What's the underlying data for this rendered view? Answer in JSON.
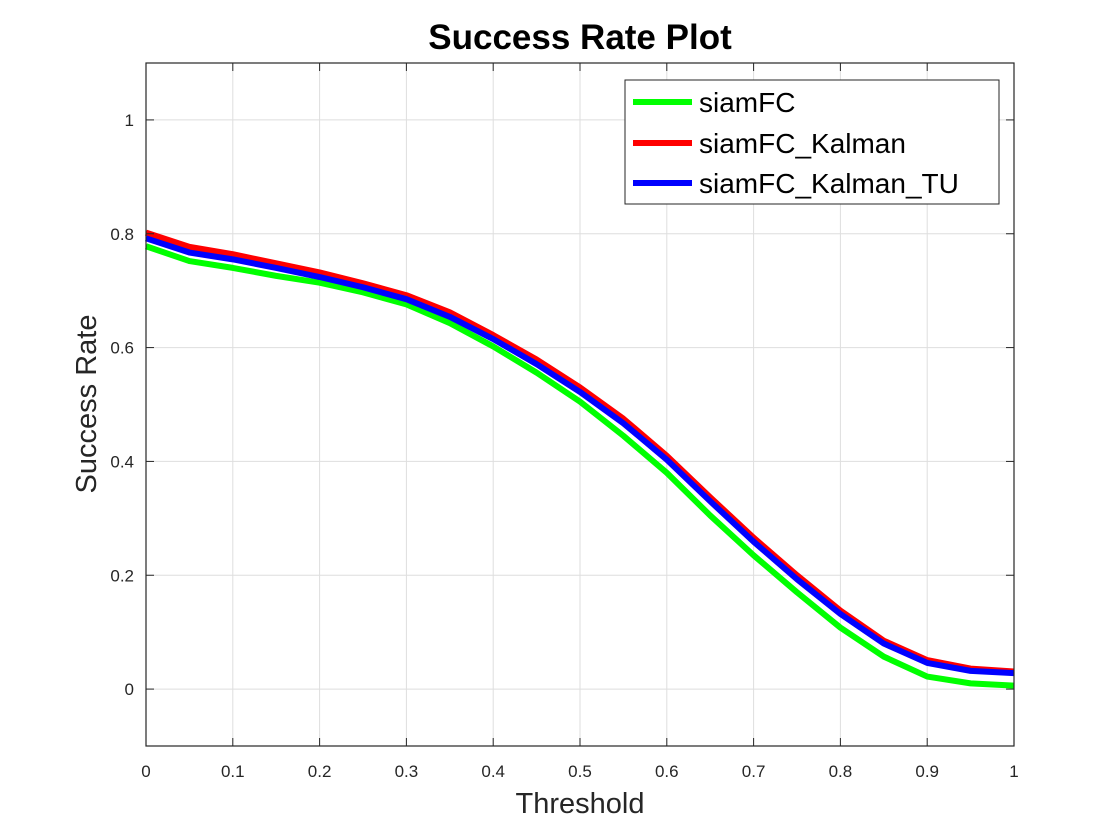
{
  "chart_data": {
    "type": "line",
    "title": "Success Rate Plot",
    "xlabel": "Threshold",
    "ylabel": "Success Rate",
    "xlim": [
      0,
      1
    ],
    "ylim": [
      -0.1,
      1.1
    ],
    "grid": true,
    "legend_position": "top-right",
    "xticks": [
      0,
      0.1,
      0.2,
      0.3,
      0.4,
      0.5,
      0.6,
      0.7,
      0.8,
      0.9,
      1
    ],
    "xtick_labels": [
      "0",
      "0.1",
      "0.2",
      "0.3",
      "0.4",
      "0.5",
      "0.6",
      "0.7",
      "0.8",
      "0.9",
      "1"
    ],
    "yticks": [
      0,
      0.2,
      0.4,
      0.6,
      0.8,
      1
    ],
    "ytick_labels": [
      "0",
      "0.2",
      "0.4",
      "0.6",
      "0.8",
      "1"
    ],
    "x": [
      0,
      0.05,
      0.1,
      0.15,
      0.2,
      0.25,
      0.3,
      0.35,
      0.4,
      0.45,
      0.5,
      0.55,
      0.6,
      0.65,
      0.7,
      0.75,
      0.8,
      0.85,
      0.9,
      0.95,
      1
    ],
    "series": [
      {
        "name": "siamFC",
        "color": "#00ff00",
        "values": [
          0.778,
          0.752,
          0.74,
          0.726,
          0.714,
          0.697,
          0.676,
          0.643,
          0.602,
          0.556,
          0.505,
          0.445,
          0.38,
          0.305,
          0.235,
          0.17,
          0.108,
          0.057,
          0.022,
          0.01,
          0.006
        ]
      },
      {
        "name": "siamFC_Kalman",
        "color": "#ff0000",
        "values": [
          0.802,
          0.777,
          0.764,
          0.748,
          0.732,
          0.713,
          0.692,
          0.662,
          0.622,
          0.579,
          0.53,
          0.475,
          0.41,
          0.337,
          0.266,
          0.2,
          0.138,
          0.085,
          0.051,
          0.036,
          0.031
        ]
      },
      {
        "name": "siamFC_Kalman_TU",
        "color": "#0000ff",
        "values": [
          0.792,
          0.767,
          0.755,
          0.74,
          0.724,
          0.706,
          0.685,
          0.654,
          0.615,
          0.571,
          0.522,
          0.467,
          0.403,
          0.33,
          0.259,
          0.193,
          0.132,
          0.08,
          0.046,
          0.032,
          0.028
        ]
      }
    ]
  }
}
